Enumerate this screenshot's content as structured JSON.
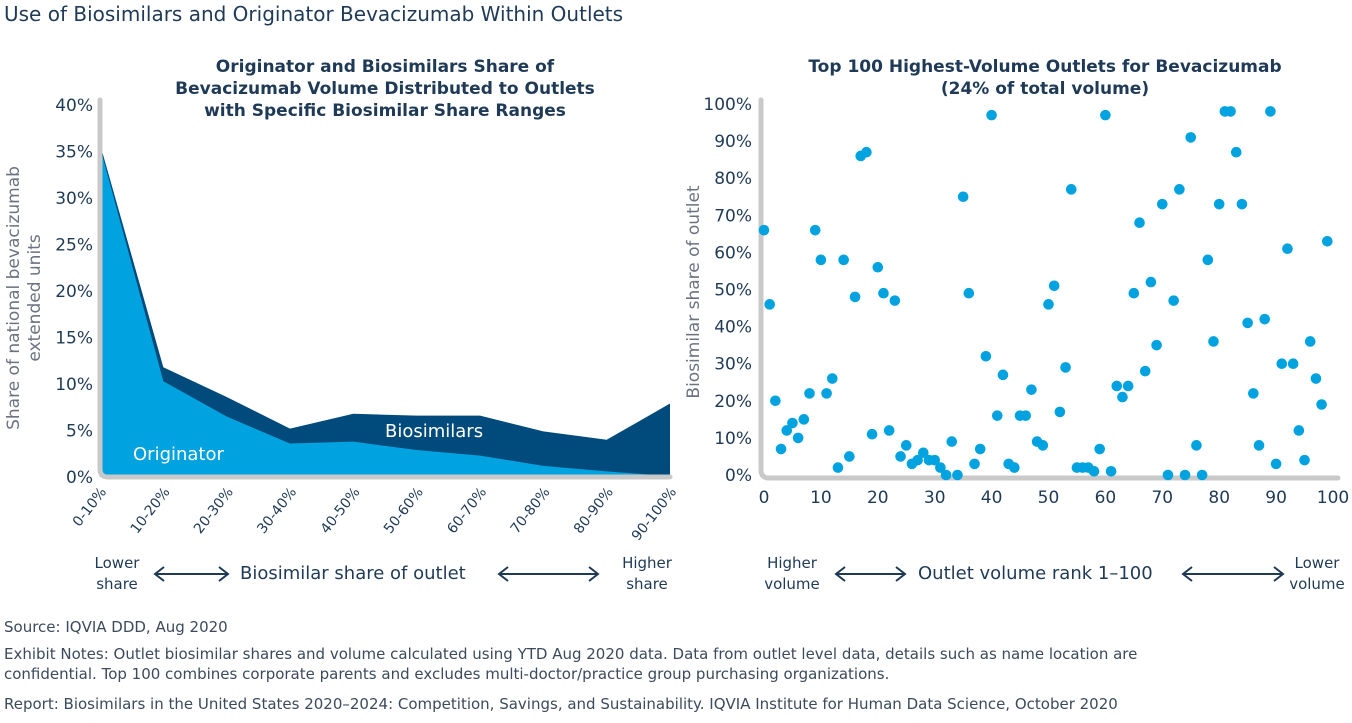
{
  "page_title": "Use of Biosimilars and Originator Bevacizumab Within Outlets",
  "colors": {
    "originator": "#00a3e0",
    "biosimilars": "#004a7c",
    "axis": "#c9c9c9",
    "text": "#1f3a56",
    "dots": "#00a3e0"
  },
  "left_chart": {
    "title_lines": [
      "Originator and Biosimilars Share of",
      "Bevacizumab Volume Distributed to Outlets",
      "with Specific Biosimilar Share Ranges"
    ],
    "ylabel_lines": [
      "Share of national bevacizumab",
      "extended units"
    ],
    "area_labels": {
      "originator": "Originator",
      "biosimilars": "Biosimilars"
    },
    "yticks": [
      "0%",
      "5%",
      "10%",
      "15%",
      "20%",
      "25%",
      "30%",
      "35%",
      "40%"
    ],
    "arrow_left_label": [
      "Lower",
      "share"
    ],
    "arrow_center_label": "Biosimilar share of outlet",
    "arrow_right_label": [
      "Higher",
      "share"
    ]
  },
  "right_chart": {
    "title_lines": [
      "Top 100 Highest-Volume Outlets for Bevacizumab",
      "(24% of total volume)"
    ],
    "ylabel": "Biosimilar share of outlet",
    "yticks": [
      "0%",
      "10%",
      "20%",
      "30%",
      "40%",
      "50%",
      "60%",
      "70%",
      "80%",
      "90%",
      "100%"
    ],
    "xticks": [
      "0",
      "10",
      "20",
      "30",
      "40",
      "50",
      "60",
      "70",
      "80",
      "90",
      "100"
    ],
    "arrow_left_label": [
      "Higher",
      "volume"
    ],
    "arrow_center_label": "Outlet volume rank 1–100",
    "arrow_right_label": [
      "Lower",
      "volume"
    ]
  },
  "chart_data": [
    {
      "type": "area",
      "title": "Originator and Biosimilars Share of Bevacizumab Volume Distributed to Outlets with Specific Biosimilar Share Ranges",
      "xlabel": "Biosimilar share of outlet",
      "ylabel": "Share of national bevacizumab extended units",
      "categories": [
        "0-10%",
        "10-20%",
        "20-30%",
        "30-40%",
        "40-50%",
        "50-60%",
        "60-70%",
        "70-80%",
        "80-90%",
        "90-100%"
      ],
      "stacked": true,
      "series": [
        {
          "name": "Originator",
          "values": [
            35.5,
            10.3,
            6.5,
            3.6,
            3.8,
            2.9,
            2.3,
            1.2,
            0.6,
            0.1
          ]
        },
        {
          "name": "Biosimilars",
          "values": [
            0.3,
            1.5,
            2.1,
            1.6,
            3.0,
            3.7,
            4.3,
            3.7,
            3.4,
            7.8
          ]
        }
      ],
      "ylim": [
        0,
        40
      ],
      "ytick_format": "%",
      "grid": false
    },
    {
      "type": "scatter",
      "title": "Top 100 Highest-Volume Outlets for Bevacizumab (24% of total volume)",
      "xlabel": "Outlet volume rank 1–100",
      "ylabel": "Biosimilar share of outlet",
      "xlim": [
        0,
        100
      ],
      "ylim": [
        0,
        100
      ],
      "grid": false,
      "x": [
        1,
        2,
        3,
        4,
        5,
        6,
        7,
        8,
        9,
        10,
        11,
        12,
        13,
        14,
        15,
        16,
        17,
        18,
        19,
        20,
        21,
        22,
        23,
        24,
        25,
        26,
        27,
        28,
        29,
        30,
        31,
        32,
        33,
        34,
        35,
        36,
        37,
        38,
        39,
        40,
        41,
        42,
        43,
        44,
        45,
        46,
        47,
        48,
        49,
        50,
        51,
        52,
        53,
        54,
        55,
        56,
        57,
        58,
        59,
        60,
        61,
        62,
        63,
        64,
        65,
        66,
        67,
        68,
        69,
        70,
        71,
        72,
        73,
        74,
        75,
        76,
        77,
        78,
        79,
        80,
        81,
        82,
        83,
        84,
        85,
        86,
        87,
        88,
        89,
        90,
        91,
        92,
        93,
        94,
        95,
        96,
        97,
        98,
        99,
        100
      ],
      "y": [
        66,
        46,
        20,
        7,
        12,
        14,
        10,
        15,
        22,
        66,
        58,
        22,
        26,
        2,
        58,
        5,
        48,
        86,
        87,
        11,
        56,
        49,
        12,
        47,
        5,
        8,
        3,
        4,
        6,
        4,
        4,
        2,
        0,
        9,
        0,
        75,
        49,
        3,
        7,
        32,
        97,
        16,
        27,
        3,
        2,
        16,
        16,
        23,
        9,
        8,
        46,
        51,
        17,
        29,
        77,
        2,
        2,
        2,
        1,
        7,
        97,
        1,
        24,
        21,
        24,
        49,
        68,
        28,
        52,
        35,
        73,
        0,
        47,
        77,
        0,
        91,
        8,
        0,
        58,
        36,
        73,
        98,
        98,
        87,
        73,
        41,
        22,
        8,
        42,
        98,
        3,
        30,
        61,
        30,
        12,
        4,
        36,
        26,
        19,
        63
      ]
    }
  ],
  "footnotes": {
    "source": "Source: IQVIA DDD, Aug 2020",
    "notes_line1": "Exhibit Notes: Outlet biosimilar shares and volume calculated using YTD Aug 2020 data. Data from outlet level data, details such as name location are",
    "notes_line2": "confidential. Top 100 combines corporate parents and excludes multi-doctor/practice group purchasing organizations.",
    "report": "Report: Biosimilars in the United States 2020–2024: Competition, Savings, and Sustainability. IQVIA Institute for Human Data Science, October 2020"
  }
}
